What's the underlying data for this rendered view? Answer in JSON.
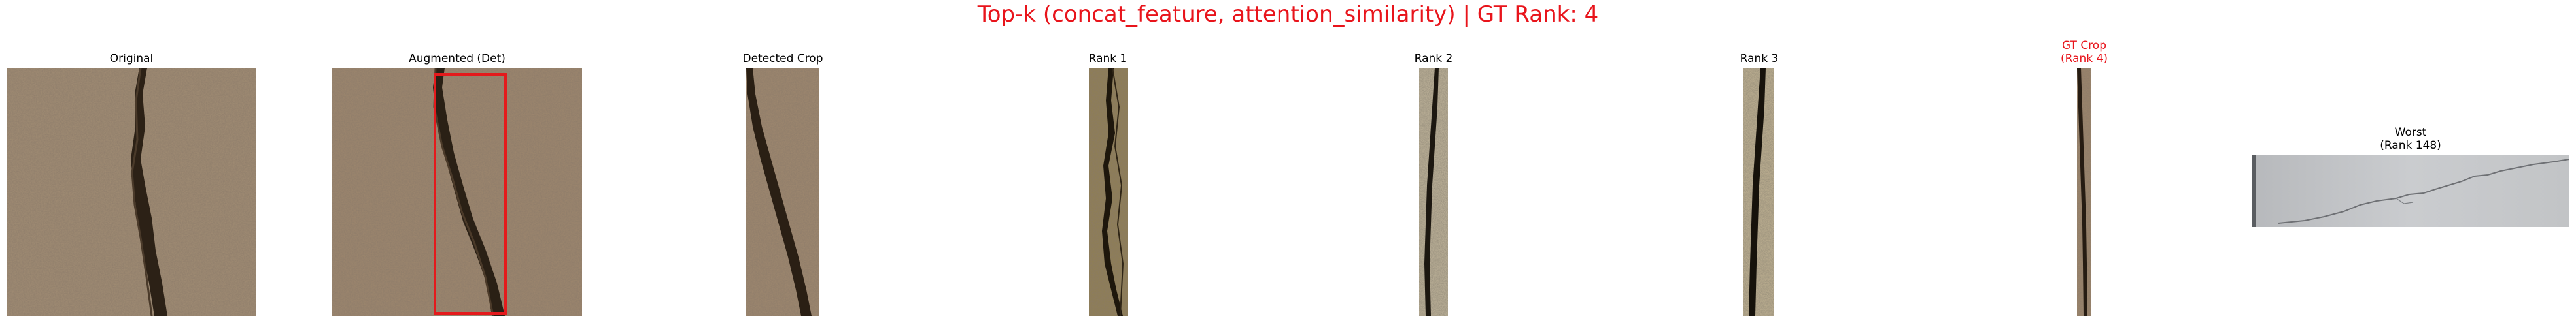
{
  "figure": {
    "title": "Top-k (concat_feature, attention_similarity) | GT Rank: 4",
    "title_color": "#e8141b"
  },
  "panels": [
    {
      "label": "Original",
      "label_color": "#000000",
      "image": "cracked-concrete-photo"
    },
    {
      "label": "Augmented (Det)",
      "label_color": "#000000",
      "image": "cracked-concrete-photo-with-detection-box",
      "box_color": "#e41a1c"
    },
    {
      "label": "Detected Crop",
      "label_color": "#000000",
      "image": "crack-crop"
    },
    {
      "label": "Rank 1",
      "label_color": "#000000",
      "image": "crack-crop"
    },
    {
      "label": "Rank 2",
      "label_color": "#000000",
      "image": "crack-crop"
    },
    {
      "label": "Rank 3",
      "label_color": "#000000",
      "image": "crack-crop"
    },
    {
      "label_line1": "GT Crop",
      "label_line2": "(Rank 4)",
      "label_color": "#e8141b",
      "image": "crack-crop"
    },
    {
      "label_line1": "Worst",
      "label_line2": "(Rank 148)",
      "label_color": "#000000",
      "image": "grey-wall-crack"
    }
  ]
}
